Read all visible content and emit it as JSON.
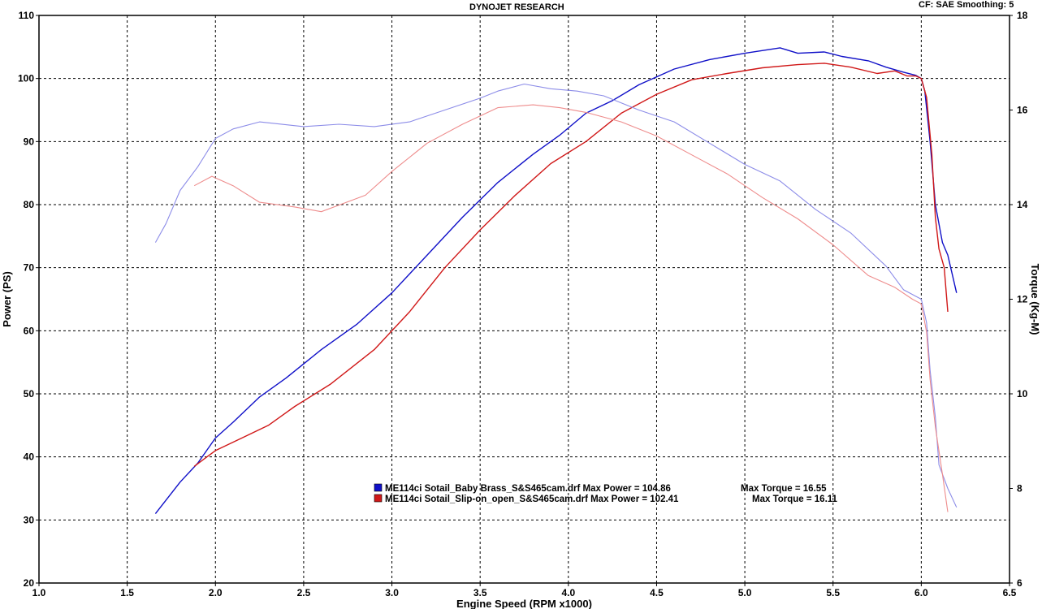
{
  "header": {
    "title": "DYNOJET RESEARCH",
    "settings": "CF: SAE  Smoothing: 5"
  },
  "colors": {
    "background": "#ffffff",
    "grid": "#000000",
    "series_blue": "#1010c8",
    "series_red": "#d01818"
  },
  "chart_data": {
    "type": "line",
    "title": "DYNOJET RESEARCH",
    "xlabel": "Engine Speed (RPM x1000)",
    "ylabel": "Power (PS)",
    "y2label": "Torque (Kg-M)",
    "xlim": [
      1.0,
      6.5
    ],
    "ylim": [
      20,
      110
    ],
    "y2lim": [
      6,
      18
    ],
    "xticks": [
      "1.0",
      "1.5",
      "2.0",
      "2.5",
      "3.0",
      "3.5",
      "4.0",
      "4.5",
      "5.0",
      "5.5",
      "6.0",
      "6.5"
    ],
    "yticks": [
      "20",
      "30",
      "40",
      "50",
      "60",
      "70",
      "80",
      "90",
      "100",
      "110"
    ],
    "y2ticks": [
      "6",
      "8",
      "10",
      "12",
      "14",
      "16",
      "18"
    ],
    "grid": true,
    "legend_position": "lower-center",
    "series": [
      {
        "name": "ME114ci Sotail_Baby Brass_S&S465cam.drf Max Power = 104.86",
        "max_torque": "Max Torque = 16.55",
        "color": "#1010c8",
        "kind": "power",
        "points": [
          [
            1.66,
            31
          ],
          [
            1.8,
            36
          ],
          [
            1.9,
            39
          ],
          [
            2.0,
            43
          ],
          [
            2.1,
            45.5
          ],
          [
            2.25,
            49.5
          ],
          [
            2.4,
            52.5
          ],
          [
            2.6,
            57
          ],
          [
            2.8,
            61
          ],
          [
            3.0,
            66
          ],
          [
            3.2,
            72
          ],
          [
            3.4,
            78
          ],
          [
            3.6,
            83.5
          ],
          [
            3.8,
            88
          ],
          [
            3.95,
            91
          ],
          [
            4.1,
            94.5
          ],
          [
            4.25,
            96.5
          ],
          [
            4.4,
            99
          ],
          [
            4.6,
            101.5
          ],
          [
            4.8,
            103
          ],
          [
            5.0,
            104
          ],
          [
            5.2,
            104.86
          ],
          [
            5.3,
            104
          ],
          [
            5.45,
            104.2
          ],
          [
            5.55,
            103.5
          ],
          [
            5.7,
            102.8
          ],
          [
            5.8,
            101.8
          ],
          [
            5.9,
            101
          ],
          [
            5.97,
            100.5
          ],
          [
            6.0,
            100
          ],
          [
            6.02,
            98
          ],
          [
            6.05,
            90
          ],
          [
            6.08,
            80
          ],
          [
            6.12,
            74
          ],
          [
            6.15,
            72
          ],
          [
            6.2,
            66
          ]
        ]
      },
      {
        "name": "ME114ci Sotail_Slip-on_open_S&S465cam.drf Max Power = 102.41",
        "max_torque": "Max Torque = 16.11",
        "color": "#d01818",
        "kind": "power",
        "points": [
          [
            1.88,
            38.5
          ],
          [
            2.0,
            41
          ],
          [
            2.15,
            43
          ],
          [
            2.3,
            45
          ],
          [
            2.45,
            48
          ],
          [
            2.65,
            51.5
          ],
          [
            2.9,
            57
          ],
          [
            3.1,
            63
          ],
          [
            3.3,
            70
          ],
          [
            3.5,
            76
          ],
          [
            3.7,
            81.5
          ],
          [
            3.9,
            86.5
          ],
          [
            4.1,
            90
          ],
          [
            4.3,
            94.5
          ],
          [
            4.5,
            97.5
          ],
          [
            4.7,
            99.8
          ],
          [
            4.9,
            100.8
          ],
          [
            5.1,
            101.7
          ],
          [
            5.3,
            102.2
          ],
          [
            5.45,
            102.41
          ],
          [
            5.6,
            101.8
          ],
          [
            5.75,
            100.8
          ],
          [
            5.85,
            101.2
          ],
          [
            5.92,
            100.4
          ],
          [
            5.97,
            100.4
          ],
          [
            6.0,
            100
          ],
          [
            6.03,
            97
          ],
          [
            6.06,
            88
          ],
          [
            6.08,
            78
          ],
          [
            6.1,
            73
          ],
          [
            6.13,
            70
          ],
          [
            6.15,
            63
          ]
        ]
      },
      {
        "name": "ME114ci Sotail_Baby Brass_S&S465cam.drf torque",
        "color": "#8c8ce8",
        "kind": "torque",
        "points": [
          [
            1.66,
            13.2
          ],
          [
            1.72,
            13.6
          ],
          [
            1.8,
            14.3
          ],
          [
            1.9,
            14.8
          ],
          [
            2.0,
            15.4
          ],
          [
            2.1,
            15.6
          ],
          [
            2.25,
            15.75
          ],
          [
            2.5,
            15.65
          ],
          [
            2.7,
            15.7
          ],
          [
            2.9,
            15.65
          ],
          [
            3.1,
            15.75
          ],
          [
            3.3,
            16.0
          ],
          [
            3.5,
            16.25
          ],
          [
            3.6,
            16.4
          ],
          [
            3.75,
            16.55
          ],
          [
            3.9,
            16.45
          ],
          [
            4.05,
            16.4
          ],
          [
            4.2,
            16.3
          ],
          [
            4.4,
            16.0
          ],
          [
            4.6,
            15.75
          ],
          [
            4.8,
            15.3
          ],
          [
            5.0,
            14.85
          ],
          [
            5.2,
            14.5
          ],
          [
            5.4,
            13.9
          ],
          [
            5.6,
            13.4
          ],
          [
            5.8,
            12.7
          ],
          [
            5.9,
            12.2
          ],
          [
            6.0,
            12.0
          ],
          [
            6.03,
            11.5
          ],
          [
            6.05,
            10.5
          ],
          [
            6.08,
            9.5
          ],
          [
            6.1,
            8.5
          ],
          [
            6.15,
            8.0
          ],
          [
            6.2,
            7.6
          ]
        ]
      },
      {
        "name": "ME114ci Sotail_Slip-on_open_S&S465cam.drf torque",
        "color": "#ee8c8c",
        "kind": "torque",
        "points": [
          [
            1.88,
            14.4
          ],
          [
            1.98,
            14.6
          ],
          [
            2.1,
            14.4
          ],
          [
            2.25,
            14.05
          ],
          [
            2.45,
            13.95
          ],
          [
            2.6,
            13.85
          ],
          [
            2.85,
            14.2
          ],
          [
            3.0,
            14.7
          ],
          [
            3.2,
            15.3
          ],
          [
            3.4,
            15.7
          ],
          [
            3.6,
            16.05
          ],
          [
            3.8,
            16.11
          ],
          [
            3.95,
            16.05
          ],
          [
            4.1,
            15.95
          ],
          [
            4.3,
            15.75
          ],
          [
            4.5,
            15.45
          ],
          [
            4.7,
            15.05
          ],
          [
            4.9,
            14.65
          ],
          [
            5.1,
            14.15
          ],
          [
            5.3,
            13.7
          ],
          [
            5.5,
            13.15
          ],
          [
            5.7,
            12.5
          ],
          [
            5.85,
            12.25
          ],
          [
            5.95,
            12.0
          ],
          [
            6.0,
            11.9
          ],
          [
            6.03,
            11.3
          ],
          [
            6.05,
            10.3
          ],
          [
            6.08,
            9.3
          ],
          [
            6.12,
            8.3
          ],
          [
            6.15,
            7.5
          ]
        ]
      }
    ]
  }
}
